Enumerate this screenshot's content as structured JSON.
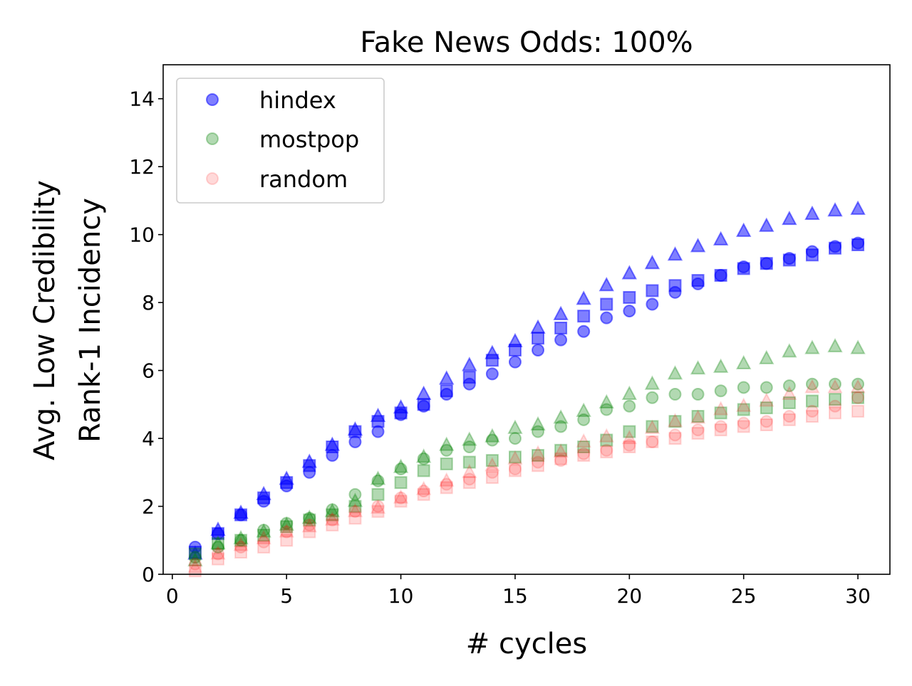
{
  "chart_data": {
    "type": "scatter",
    "title": "Fake News Odds: 100%",
    "xlabel": "# cycles",
    "ylabel": [
      "Avg. Low Credibility",
      "Rank-1 Incidency"
    ],
    "xlim": [
      -0.4,
      31.4
    ],
    "ylim": [
      0,
      15
    ],
    "xticks": [
      0,
      5,
      10,
      15,
      20,
      25,
      30
    ],
    "yticks": [
      0,
      2,
      4,
      6,
      8,
      10,
      12,
      14
    ],
    "grid": false,
    "legend": {
      "placement": "top-left",
      "entries": [
        "hindex",
        "mostpop",
        "random"
      ]
    },
    "x": [
      1,
      2,
      3,
      4,
      5,
      6,
      7,
      8,
      9,
      10,
      11,
      12,
      13,
      14,
      15,
      16,
      17,
      18,
      19,
      20,
      21,
      22,
      23,
      24,
      25,
      26,
      27,
      28,
      29,
      30
    ],
    "series": [
      {
        "name": "hindex",
        "color": "#0000ff",
        "alpha": 0.5,
        "marker": "circle",
        "values": [
          0.8,
          1.2,
          1.75,
          2.15,
          2.6,
          3.0,
          3.5,
          3.9,
          4.2,
          4.7,
          4.95,
          5.3,
          5.6,
          5.9,
          6.25,
          6.6,
          6.9,
          7.15,
          7.55,
          7.75,
          7.95,
          8.3,
          8.55,
          8.8,
          9.05,
          9.15,
          9.3,
          9.5,
          9.65,
          9.75
        ]
      },
      {
        "name": "hindex",
        "color": "#0000ff",
        "alpha": 0.5,
        "marker": "square",
        "values": [
          0.65,
          1.2,
          1.75,
          2.25,
          2.7,
          3.2,
          3.75,
          4.2,
          4.5,
          4.75,
          5.0,
          5.4,
          5.8,
          6.3,
          6.6,
          6.95,
          7.25,
          7.6,
          7.95,
          8.15,
          8.35,
          8.5,
          8.65,
          8.8,
          9.0,
          9.15,
          9.25,
          9.4,
          9.6,
          9.7
        ]
      },
      {
        "name": "hindex",
        "color": "#0000ff",
        "alpha": 0.5,
        "marker": "triangle",
        "values": [
          0.6,
          1.3,
          1.8,
          2.35,
          2.8,
          3.3,
          3.8,
          4.25,
          4.65,
          4.9,
          5.3,
          5.75,
          6.15,
          6.5,
          6.85,
          7.25,
          7.65,
          8.1,
          8.5,
          8.85,
          9.15,
          9.4,
          9.65,
          9.85,
          10.1,
          10.25,
          10.45,
          10.6,
          10.7,
          10.75
        ]
      },
      {
        "name": "mostpop",
        "color": "#008000",
        "alpha": 0.3,
        "marker": "circle",
        "values": [
          0.5,
          0.8,
          1.0,
          1.3,
          1.5,
          1.65,
          1.9,
          2.35,
          2.75,
          3.1,
          3.4,
          3.65,
          3.75,
          3.95,
          4.0,
          4.2,
          4.35,
          4.55,
          4.85,
          4.95,
          5.2,
          5.3,
          5.3,
          5.4,
          5.5,
          5.5,
          5.55,
          5.6,
          5.6,
          5.6
        ]
      },
      {
        "name": "mostpop",
        "color": "#008000",
        "alpha": 0.3,
        "marker": "square",
        "values": [
          0.6,
          0.9,
          1.0,
          1.15,
          1.4,
          1.6,
          1.75,
          2.0,
          2.35,
          2.7,
          3.05,
          3.25,
          3.3,
          3.35,
          3.45,
          3.5,
          3.65,
          3.75,
          3.95,
          4.2,
          4.35,
          4.5,
          4.65,
          4.75,
          4.85,
          4.9,
          5.05,
          5.1,
          5.15,
          5.2
        ]
      },
      {
        "name": "mostpop",
        "color": "#008000",
        "alpha": 0.3,
        "marker": "triangle",
        "values": [
          0.4,
          0.9,
          1.05,
          1.25,
          1.45,
          1.65,
          1.85,
          2.15,
          2.8,
          3.15,
          3.45,
          3.8,
          3.95,
          4.05,
          4.3,
          4.4,
          4.6,
          4.8,
          5.05,
          5.3,
          5.6,
          5.9,
          6.05,
          6.1,
          6.2,
          6.35,
          6.55,
          6.65,
          6.7,
          6.65
        ]
      },
      {
        "name": "random",
        "color": "#ff0000",
        "alpha": 0.15,
        "marker": "circle",
        "values": [
          0.3,
          0.6,
          0.8,
          0.95,
          1.25,
          1.45,
          1.6,
          1.85,
          2.0,
          2.25,
          2.45,
          2.65,
          2.8,
          3.0,
          3.1,
          3.3,
          3.35,
          3.55,
          3.65,
          3.8,
          3.9,
          4.1,
          4.25,
          4.35,
          4.45,
          4.5,
          4.65,
          4.8,
          4.95,
          5.2
        ]
      },
      {
        "name": "random",
        "color": "#ff0000",
        "alpha": 0.15,
        "marker": "square",
        "values": [
          0.1,
          0.45,
          0.65,
          0.8,
          1.0,
          1.25,
          1.45,
          1.65,
          1.85,
          2.15,
          2.35,
          2.55,
          2.7,
          2.85,
          3.05,
          3.2,
          3.4,
          3.5,
          3.6,
          3.75,
          3.9,
          4.0,
          4.15,
          4.25,
          4.35,
          4.4,
          4.55,
          4.65,
          4.75,
          4.8
        ]
      },
      {
        "name": "random",
        "color": "#ff0000",
        "alpha": 0.15,
        "marker": "triangle",
        "values": [
          0.2,
          0.6,
          0.85,
          1.05,
          1.25,
          1.4,
          1.6,
          1.85,
          1.95,
          2.25,
          2.5,
          2.75,
          3.0,
          3.2,
          3.4,
          3.55,
          3.6,
          3.9,
          4.05,
          4.0,
          4.3,
          4.5,
          4.6,
          4.85,
          4.95,
          5.1,
          5.3,
          5.5,
          5.5,
          5.5
        ]
      }
    ]
  }
}
